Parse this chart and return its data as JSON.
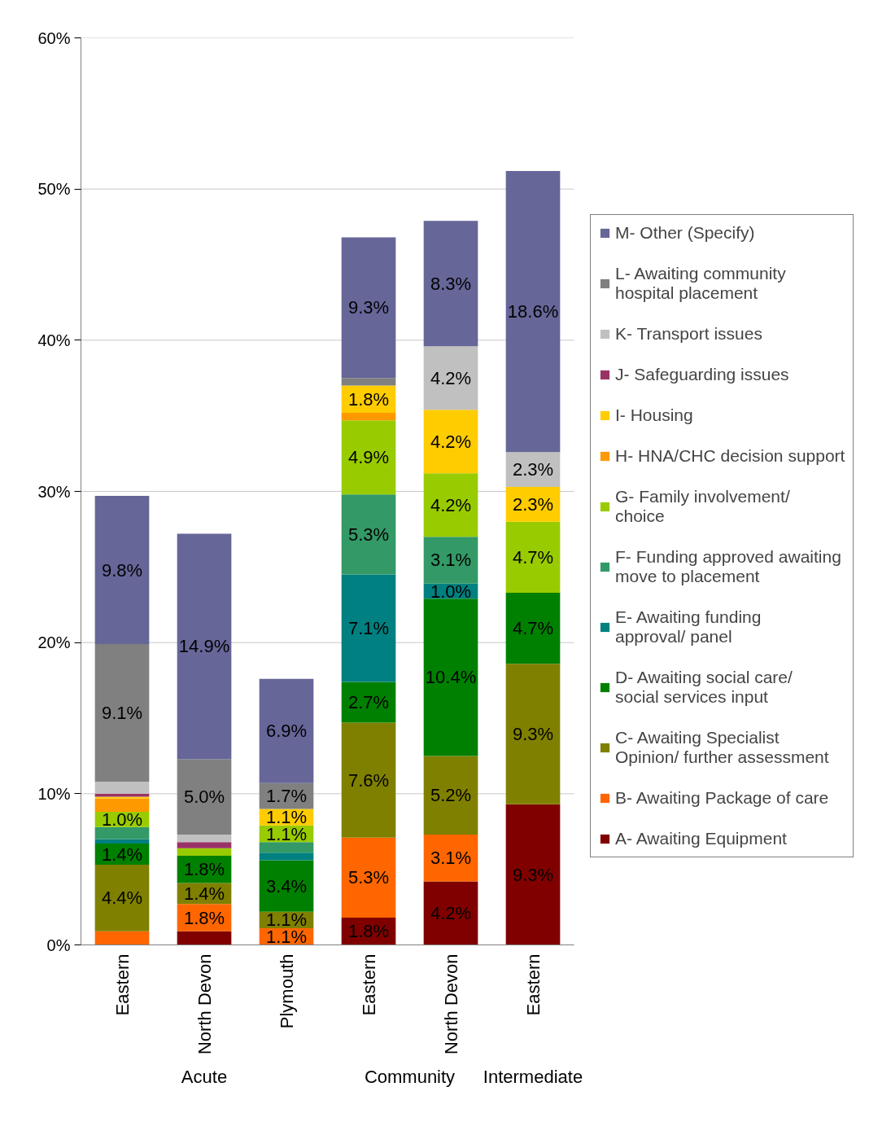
{
  "chart_data": {
    "type": "bar",
    "stacked": true,
    "categories": [
      "Eastern",
      "North Devon",
      "Plymouth",
      "Eastern",
      "North Devon",
      "Eastern"
    ],
    "annotations": [
      "Acute",
      "Community",
      "Intermediate"
    ],
    "ylim": [
      0,
      60
    ],
    "yticks": [
      {
        "value": 0,
        "label": "0%"
      },
      {
        "value": 10,
        "label": "10%"
      },
      {
        "value": 20,
        "label": "20%"
      },
      {
        "value": 30,
        "label": "30%"
      },
      {
        "value": 40,
        "label": "40%"
      },
      {
        "value": 50,
        "label": "50%"
      },
      {
        "value": 60,
        "label": "60%"
      }
    ],
    "grid": "y",
    "legend": "right",
    "series": [
      {
        "name": "A- Awaiting Equipment",
        "color": "#800000",
        "values": [
          null,
          0.9,
          null,
          1.8,
          4.2,
          9.3
        ],
        "value_labels": [
          null,
          null,
          null,
          "1.8%",
          "4.2%",
          "9.3%"
        ]
      },
      {
        "name": "B- Awaiting Package of care",
        "color": "#ff6600",
        "values": [
          0.9,
          1.8,
          1.1,
          5.3,
          3.1,
          null
        ],
        "value_labels": [
          null,
          "1.8%",
          "1.1%",
          "5.3%",
          "3.1%",
          null
        ]
      },
      {
        "name": "C- Awaiting Specialist Opinion/ further assessment",
        "color": "#808000",
        "values": [
          4.4,
          1.4,
          1.1,
          7.6,
          5.2,
          9.3
        ],
        "value_labels": [
          "4.4%",
          "1.4%",
          "1.1%",
          "7.6%",
          "5.2%",
          "9.3%"
        ]
      },
      {
        "name": "D- Awaiting social care/ social services input",
        "color": "#008000",
        "values": [
          1.4,
          1.8,
          3.4,
          2.7,
          10.4,
          4.7
        ],
        "value_labels": [
          "1.4%",
          "1.8%",
          "3.4%",
          "2.7%",
          "10.4%",
          "4.7%"
        ]
      },
      {
        "name": "E- Awaiting funding approval/ panel",
        "color": "#008080",
        "values": [
          0.3,
          null,
          0.5,
          7.1,
          1.0,
          null
        ],
        "value_labels": [
          null,
          null,
          null,
          "7.1%",
          "1.0%",
          null
        ]
      },
      {
        "name": "F- Funding approved awaiting move to placement",
        "color": "#339966",
        "values": [
          0.8,
          null,
          0.7,
          5.3,
          3.1,
          null
        ],
        "value_labels": [
          null,
          null,
          null,
          "5.3%",
          "3.1%",
          null
        ]
      },
      {
        "name": "G- Family involvement/ choice",
        "color": "#99cc00",
        "values": [
          1.0,
          0.5,
          1.1,
          4.9,
          4.2,
          4.7
        ],
        "value_labels": [
          "1.0%",
          null,
          "1.1%",
          "4.9%",
          "4.2%",
          "4.7%"
        ]
      },
      {
        "name": "H- HNA/CHC decision support",
        "color": "#ff9900",
        "values": [
          0.9,
          null,
          null,
          0.5,
          null,
          null
        ],
        "value_labels": [
          null,
          null,
          null,
          null,
          null,
          null
        ]
      },
      {
        "name": "I- Housing",
        "color": "#ffcc00",
        "values": [
          0.1,
          null,
          1.1,
          1.8,
          4.2,
          2.3
        ],
        "value_labels": [
          null,
          null,
          "1.1%",
          "1.8%",
          "4.2%",
          "2.3%"
        ]
      },
      {
        "name": "J- Safeguarding issues",
        "color": "#993366",
        "values": [
          0.2,
          0.4,
          null,
          null,
          null,
          null
        ],
        "value_labels": [
          null,
          null,
          null,
          null,
          null,
          null
        ]
      },
      {
        "name": "K- Transport issues",
        "color": "#c0c0c0",
        "values": [
          0.8,
          0.5,
          null,
          null,
          4.2,
          2.3
        ],
        "value_labels": [
          null,
          null,
          null,
          null,
          "4.2%",
          "2.3%"
        ]
      },
      {
        "name": "L- Awaiting community hospital placement",
        "color": "#808080",
        "values": [
          9.1,
          5.0,
          1.7,
          0.5,
          null,
          null
        ],
        "value_labels": [
          "9.1%",
          "5.0%",
          "1.7%",
          null,
          null,
          null
        ]
      },
      {
        "name": "M- Other (Specify)",
        "color": "#666699",
        "values": [
          9.8,
          14.9,
          6.9,
          9.3,
          8.3,
          18.6
        ],
        "value_labels": [
          "9.8%",
          "14.9%",
          "6.9%",
          "9.3%",
          "8.3%",
          "18.6%"
        ]
      }
    ]
  }
}
